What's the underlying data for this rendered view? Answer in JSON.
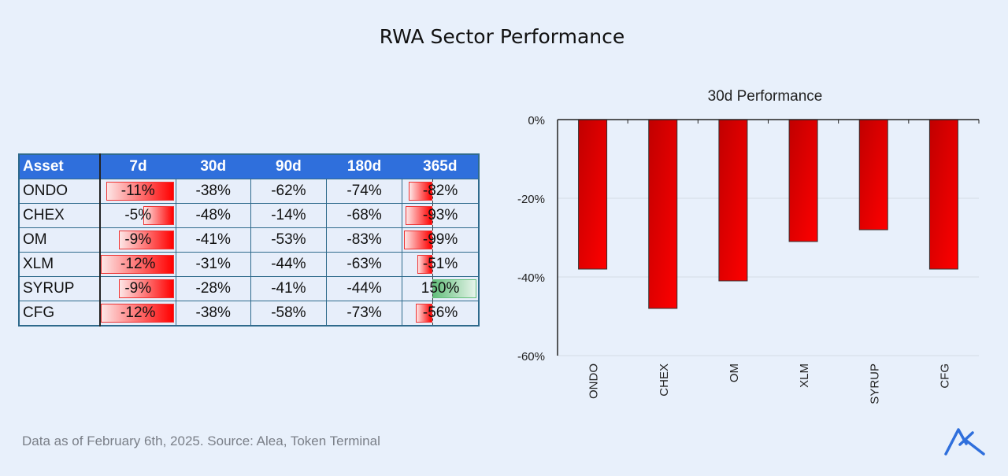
{
  "title": "RWA Sector Performance",
  "table": {
    "headers": [
      "Asset",
      "7d",
      "30d",
      "90d",
      "180d",
      "365d"
    ],
    "rows": [
      {
        "asset": "ONDO",
        "values": [
          "-11%",
          "-38%",
          "-62%",
          "-74%",
          "-82%"
        ],
        "d7": -11,
        "d365": -82
      },
      {
        "asset": "CHEX",
        "values": [
          "-5%",
          "-48%",
          "-14%",
          "-68%",
          "-93%"
        ],
        "d7": -5,
        "d365": -93
      },
      {
        "asset": "OM",
        "values": [
          "-9%",
          "-41%",
          "-53%",
          "-83%",
          "-99%"
        ],
        "d7": -9,
        "d365": -99
      },
      {
        "asset": "XLM",
        "values": [
          "-12%",
          "-31%",
          "-44%",
          "-63%",
          "-51%"
        ],
        "d7": -12,
        "d365": -51
      },
      {
        "asset": "SYRUP",
        "values": [
          "-9%",
          "-28%",
          "-41%",
          "-44%",
          "150%"
        ],
        "d7": -9,
        "d365": 150
      },
      {
        "asset": "CFG",
        "values": [
          "-12%",
          "-38%",
          "-58%",
          "-73%",
          "-56%"
        ],
        "d7": -12,
        "d365": -56
      }
    ],
    "colors": {
      "header": "#2f6fdc",
      "negative": "#ff0000",
      "positive": "#63be7b"
    }
  },
  "chart_data": {
    "type": "bar",
    "title": "30d Performance",
    "categories": [
      "ONDO",
      "CHEX",
      "OM",
      "XLM",
      "SYRUP",
      "CFG"
    ],
    "values": [
      -38,
      -48,
      -41,
      -31,
      -28,
      -38
    ],
    "ylim": [
      -60,
      0
    ],
    "yticks": [
      "0%",
      "-20%",
      "-40%",
      "-60%"
    ],
    "ytick_values": [
      0,
      -20,
      -40,
      -60
    ],
    "grid": true,
    "bar_color": "#e00000",
    "xlabel": "",
    "ylabel": ""
  },
  "footer": "Data as of February 6th, 2025. Source: Alea, Token Terminal",
  "logo_color": "#2f6fdc"
}
